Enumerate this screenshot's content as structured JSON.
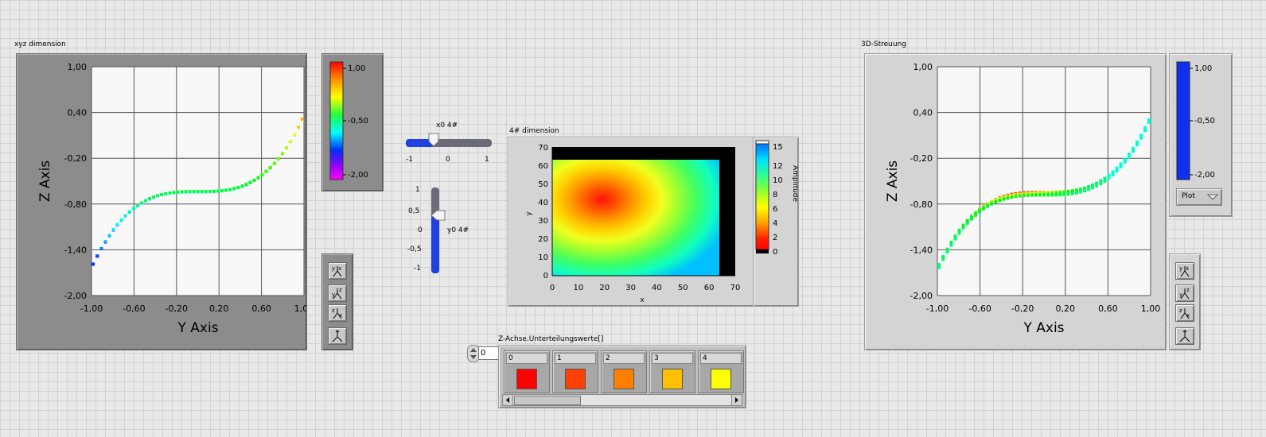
{
  "graph_left": {
    "label": "xyz dimension",
    "y_axis_title": "Y Axis",
    "z_axis_title": "Z Axis",
    "x_ticks": [
      "-1,00",
      "-0,60",
      "-0,20",
      "0,20",
      "0,60",
      "1,00"
    ],
    "z_ticks": [
      "1,00",
      "0,40",
      "-0,20",
      "-0,80",
      "-1,40",
      "-2,00"
    ],
    "colorbar_ticks": [
      "1,00",
      "-0,50",
      "-2,00"
    ]
  },
  "slider_x": {
    "label": "x0 4#",
    "ticks": [
      "-1",
      "0",
      "1"
    ],
    "value": -0.35
  },
  "slider_y": {
    "label": "y0 4#",
    "ticks": [
      "1",
      "0,5",
      "0",
      "-0,5",
      "-1"
    ],
    "value": 0.35
  },
  "intensity": {
    "label": "4# dimension",
    "xlabel": "x",
    "ylabel": "y",
    "x_ticks": [
      "0",
      "10",
      "20",
      "30",
      "40",
      "50",
      "60",
      "70"
    ],
    "y_ticks": [
      "70",
      "60",
      "50",
      "40",
      "30",
      "20",
      "10",
      "0"
    ],
    "colorbar_title": "Amplitude",
    "colorbar_ticks": [
      "15",
      "12",
      "10",
      "8",
      "6",
      "4",
      "2",
      "0"
    ]
  },
  "array": {
    "label": "Z-Achse.Unterteilungswerte[]",
    "index_value": "0",
    "elements": [
      {
        "index": "0",
        "color": "#ff0000"
      },
      {
        "index": "1",
        "color": "#ff4000"
      },
      {
        "index": "2",
        "color": "#ff8000"
      },
      {
        "index": "3",
        "color": "#ffc000"
      },
      {
        "index": "4",
        "color": "#ffff00"
      }
    ]
  },
  "graph_right": {
    "label": "3D-Streuung",
    "y_axis_title": "Y Axis",
    "z_axis_title": "Z Axis",
    "x_ticks": [
      "-1,00",
      "-0,60",
      "-0,20",
      "0,20",
      "0,60",
      "1,00"
    ],
    "z_ticks": [
      "1,00",
      "0,40",
      "-0,20",
      "-0,80",
      "-1,40",
      "-2,00"
    ],
    "colorbar_ticks": [
      "1,00",
      "-0,50",
      "-2,00"
    ],
    "plot_button": "Plot"
  },
  "colors": {
    "slider_blue": "#2040e0",
    "colorbar_right": "#1030f0"
  }
}
